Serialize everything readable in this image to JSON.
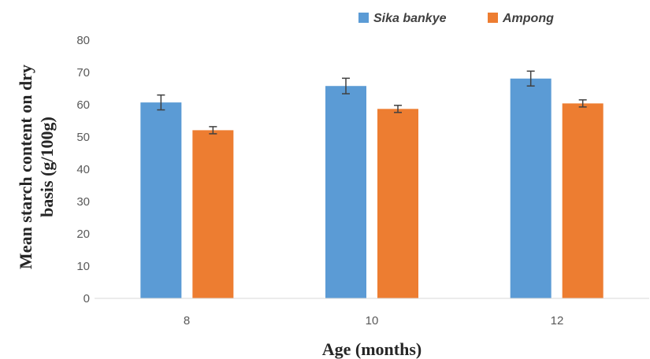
{
  "chart_data": {
    "type": "bar",
    "title": "",
    "xlabel": "Age (months)",
    "ylabel": "Mean starch content on dry basis (g/100g)",
    "ylabel_lines": [
      "Mean starch content on dry",
      "basis (g/100g)"
    ],
    "categories": [
      "8",
      "10",
      "12"
    ],
    "ylim": [
      0,
      80
    ],
    "yticks": [
      "0",
      "10",
      "20",
      "30",
      "40",
      "50",
      "60",
      "70",
      "80"
    ],
    "grid": false,
    "legend_position": "top-right",
    "series": [
      {
        "name": "Sika bankye",
        "color": "#5b9bd5",
        "values": [
          60.7,
          65.8,
          68.1
        ],
        "errors": [
          2.3,
          2.4,
          2.3
        ]
      },
      {
        "name": "Ampong",
        "color": "#ed7d31",
        "values": [
          52.1,
          58.7,
          60.4
        ],
        "errors": [
          1.1,
          1.1,
          1.1
        ]
      }
    ]
  }
}
